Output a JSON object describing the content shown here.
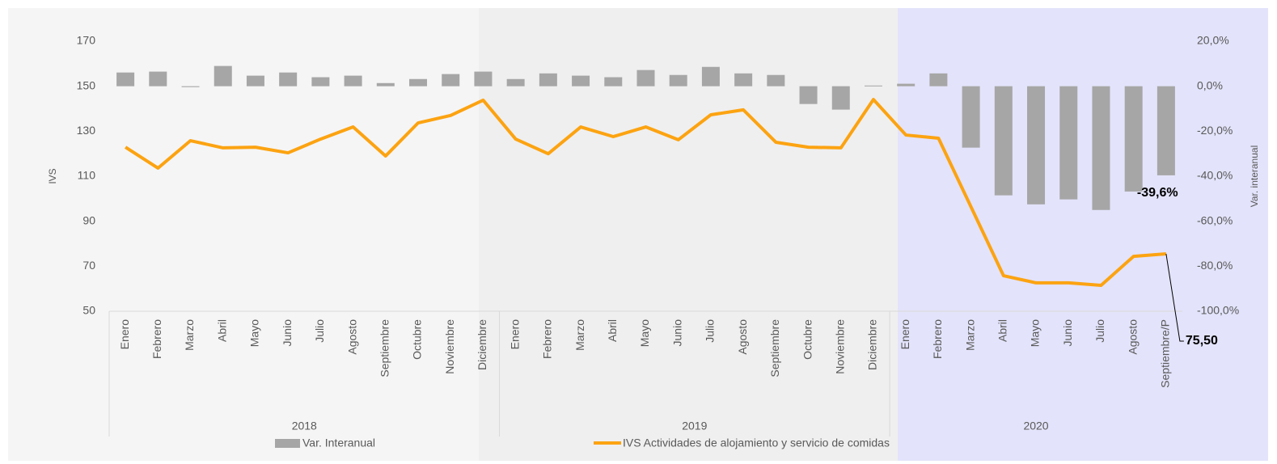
{
  "chart_data": {
    "type": "bar_line",
    "groups": [
      {
        "label": "2018",
        "color": "#f5f5f5",
        "categories": [
          "Enero",
          "Febrero",
          "Marzo",
          "Abril",
          "Mayo",
          "Junio",
          "Julio",
          "Agosto",
          "Septiembre",
          "Octubre",
          "Noviembre",
          "Diciembre"
        ]
      },
      {
        "label": "2019",
        "color": "#efefef",
        "categories": [
          "Enero",
          "Febrero",
          "Marzo",
          "Abril",
          "Mayo",
          "Junio",
          "Julio",
          "Agosto",
          "Septiembre",
          "Octubre",
          "Noviembre",
          "Diciembre"
        ]
      },
      {
        "label": "2020",
        "color": "#e3e3fb",
        "categories": [
          "Enero",
          "Febrero",
          "Marzo",
          "Abril",
          "Mayo",
          "Junio",
          "Julio",
          "Agosto",
          "Septiembre/P"
        ]
      }
    ],
    "series": [
      {
        "name": "Var. Interanual",
        "color": "#a6a6a6",
        "axis": "y2",
        "values": [
          6.1,
          6.5,
          -0.4,
          9,
          4.7,
          6.1,
          4,
          4.7,
          1.4,
          3.2,
          5.4,
          6.5,
          3.2,
          5.7,
          4.7,
          4,
          7.2,
          5,
          8.6,
          5.7,
          5,
          -7.9,
          -10.4,
          0.3,
          1.1,
          5.7,
          -27.3,
          -48.5,
          -52.5,
          -50.3,
          -55,
          -46.8,
          -39.6
        ],
        "value_labels": [
          null,
          null,
          null,
          null,
          null,
          null,
          null,
          null,
          null,
          null,
          null,
          null,
          null,
          null,
          null,
          null,
          null,
          null,
          null,
          null,
          null,
          null,
          null,
          null,
          null,
          null,
          null,
          null,
          null,
          null,
          null,
          null,
          "-39,6%"
        ]
      },
      {
        "name": "IVS Actividades de alojamiento y servicio de comidas",
        "color": "#fca311",
        "type": "line",
        "values": [
          122.9,
          113.6,
          125.8,
          122.6,
          122.9,
          120.4,
          126.5,
          131.9,
          119,
          133.7,
          137,
          143.8,
          126.5,
          120,
          131.9,
          127.6,
          131.9,
          126.2,
          137.3,
          139.5,
          125.1,
          122.9,
          122.6,
          144.1,
          128.3,
          126.9,
          96.4,
          65.8,
          62.6,
          62.6,
          61.5,
          74.4,
          75.5
        ],
        "value_labels": [
          null,
          null,
          null,
          null,
          null,
          null,
          null,
          null,
          null,
          null,
          null,
          null,
          null,
          null,
          null,
          null,
          null,
          null,
          null,
          null,
          null,
          null,
          null,
          null,
          null,
          null,
          null,
          null,
          null,
          null,
          null,
          null,
          "75,50"
        ]
      }
    ],
    "y_label": "IVS",
    "y2_label": "Var. interanual",
    "ylim": [
      50,
      170
    ],
    "yticks": [
      50,
      70,
      90,
      110,
      130,
      150,
      170
    ],
    "y2lim": [
      -100,
      20
    ],
    "y2ticks": [
      {
        "value": -100,
        "label": "-100,0%"
      },
      {
        "value": -80,
        "label": "-80,0%"
      },
      {
        "value": -60,
        "label": "-60,0%"
      },
      {
        "value": -40,
        "label": "-40,0%"
      },
      {
        "value": -20,
        "label": "-20,0%"
      },
      {
        "value": 0,
        "label": "0,0%"
      },
      {
        "value": 20,
        "label": "20,0%"
      }
    ],
    "legend": "bottom"
  }
}
